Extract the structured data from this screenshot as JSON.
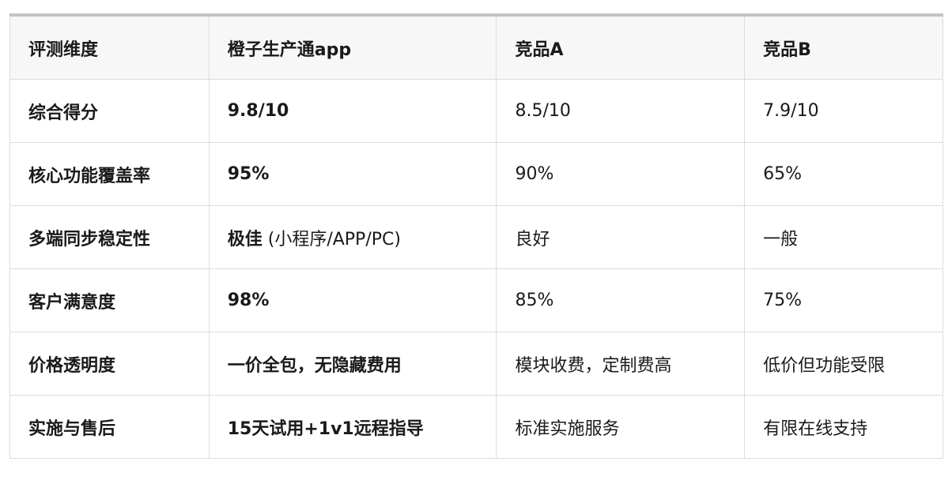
{
  "table": {
    "headers": [
      "评测维度",
      "橙子生产通app",
      "竞品A",
      "竞品B"
    ],
    "rows": [
      {
        "dimension": "综合得分",
        "ours": "9.8/10",
        "ours_note": "",
        "a": "8.5/10",
        "b": "7.9/10"
      },
      {
        "dimension": "核心功能覆盖率",
        "ours": "95%",
        "ours_note": "",
        "a": "90%",
        "b": "65%"
      },
      {
        "dimension": "多端同步稳定性",
        "ours": "极佳",
        "ours_note": " (小程序/APP/PC)",
        "a": "良好",
        "b": "一般"
      },
      {
        "dimension": "客户满意度",
        "ours": "98%",
        "ours_note": "",
        "a": "85%",
        "b": "75%"
      },
      {
        "dimension": "价格透明度",
        "ours": "一价全包，无隐藏费用",
        "ours_note": "",
        "a": "模块收费，定制费高",
        "b": "低价但功能受限"
      },
      {
        "dimension": "实施与售后",
        "ours": "15天试用+1v1远程指导",
        "ours_note": "",
        "a": "标准实施服务",
        "b": "有限在线支持"
      }
    ]
  }
}
